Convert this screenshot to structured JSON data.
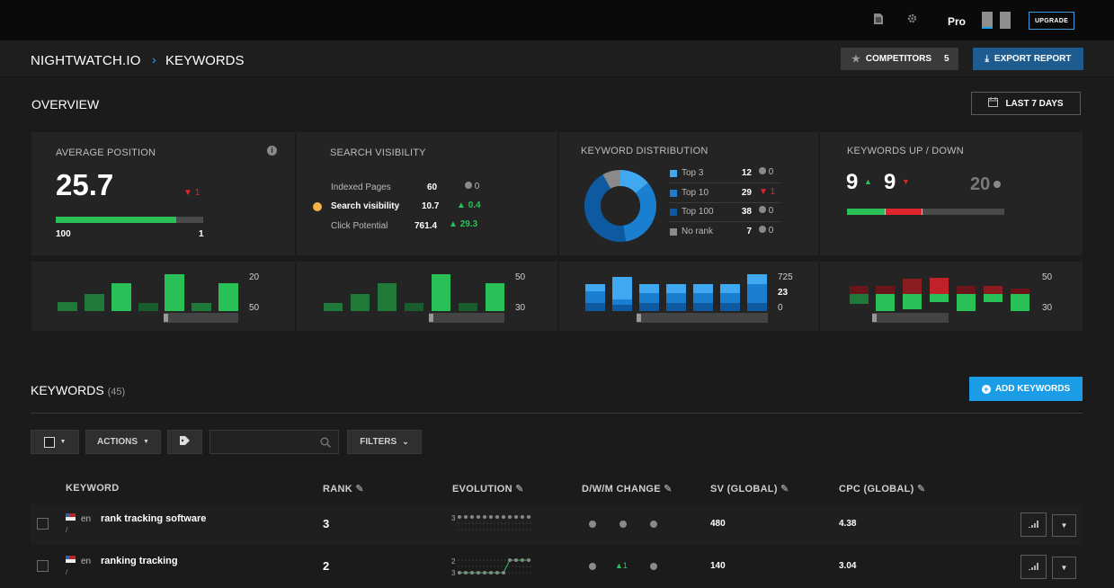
{
  "topbar": {
    "plan": "Pro",
    "upgrade_label": "UPGRADE"
  },
  "header": {
    "brand": "NIGHTWATCH.IO",
    "section": "KEYWORDS",
    "competitors_label": "COMPETITORS",
    "competitors_count": "5",
    "export_label": "EXPORT REPORT"
  },
  "overview": {
    "title": "OVERVIEW",
    "date_range": "LAST 7 DAYS"
  },
  "avg_position": {
    "title": "AVERAGE POSITION",
    "value": "25.7",
    "change": "1",
    "range_min": "100",
    "range_max": "1",
    "fill": 0.82
  },
  "visibility": {
    "title": "SEARCH VISIBILITY",
    "rows": [
      {
        "label": "Indexed Pages",
        "value": "60",
        "change": "0"
      },
      {
        "label": "Search visibility",
        "value": "10.7",
        "change": "0.4"
      },
      {
        "label": "Click Potential",
        "value": "761.4",
        "change": "29.3"
      }
    ]
  },
  "distribution": {
    "title": "KEYWORD DISTRIBUTION",
    "rows": [
      {
        "label": "Top 3",
        "value": "12",
        "change": "0",
        "color": "#3fa8f0"
      },
      {
        "label": "Top 10",
        "value": "29",
        "change": "1",
        "color": "#1a7fd0"
      },
      {
        "label": "Top 100",
        "value": "38",
        "change": "0",
        "color": "#0e5aa0"
      },
      {
        "label": "No rank",
        "value": "7",
        "change": "0",
        "color": "#8a8a8a"
      }
    ]
  },
  "updown": {
    "title": "KEYWORDS UP / DOWN",
    "up": "9",
    "down": "9",
    "unchanged": "20",
    "up_frac": 0.24,
    "down_frac": 0.24
  },
  "mini": {
    "avg_top": "20",
    "avg_bottom": "50",
    "vis_top": "50",
    "vis_bottom": "30",
    "dist_top": "725",
    "dist_mid": "23",
    "dist_bottom": "0",
    "ud_top": "50",
    "ud_bottom": "30"
  },
  "keywords": {
    "title": "KEYWORDS",
    "count": "(45)",
    "add_label": "ADD KEYWORDS",
    "actions_label": "ACTIONS",
    "filters_label": "FILTERS",
    "columns": [
      "KEYWORD",
      "RANK",
      "EVOLUTION",
      "D/W/M CHANGE",
      "SV (GLOBAL)",
      "CPC (GLOBAL)"
    ],
    "rows": [
      {
        "lang": "en",
        "keyword": "rank tracking software",
        "url": "/",
        "rank": "3",
        "evo_labels": [
          "3"
        ],
        "change_mid": "",
        "sv": "480",
        "cpc": "4.38"
      },
      {
        "lang": "en",
        "keyword": "ranking tracking",
        "url": "/",
        "rank": "2",
        "evo_labels": [
          "2",
          "3"
        ],
        "change_mid": "1",
        "sv": "140",
        "cpc": "3.04"
      }
    ]
  }
}
